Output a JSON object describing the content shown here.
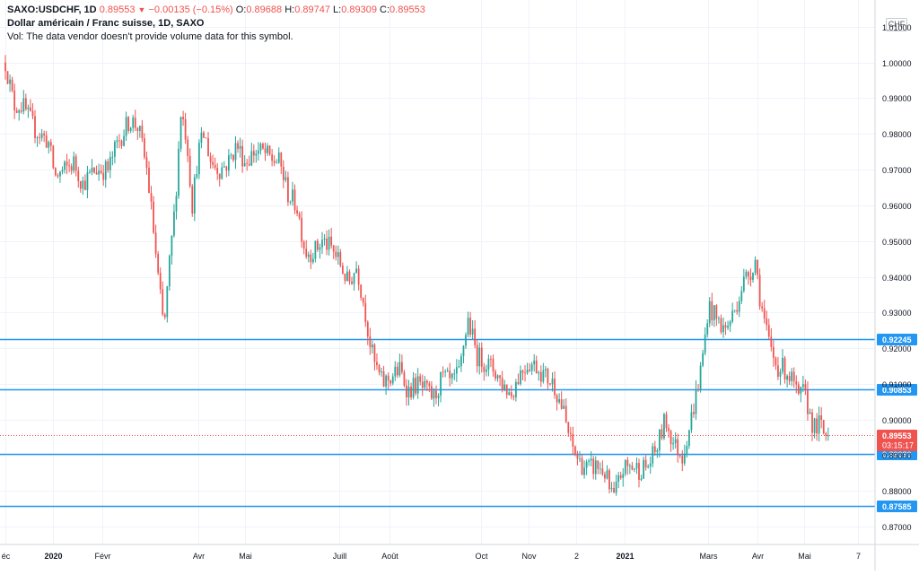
{
  "legend": {
    "symbol": "SAXO:USDCHF, 1D",
    "last": "0.89553",
    "change": "−0.00135 (−0.15%)",
    "o_label": "O:",
    "o_value": "0.89688",
    "h_label": "H:",
    "h_value": "0.89747",
    "l_label": "L:",
    "l_value": "0.89309",
    "c_label": "C:",
    "c_value": "0.89553",
    "title": "Dollar américain / Franc suisse, 1D, SAXO",
    "volume_note": "Vol: The data vendor doesn't provide volume data for this symbol."
  },
  "currency_button": "CHF",
  "price_badge": {
    "price": "0.89553",
    "countdown": "03:15:17"
  },
  "colors": {
    "up": "#26a69a",
    "down": "#ef5350",
    "level": "#2196f3",
    "grid": "#f0f3fa",
    "axis_text": "#131722"
  },
  "chart_data": {
    "type": "candlestick",
    "title": "Dollar américain / Franc suisse, 1D, SAXO",
    "ylim": [
      0.865,
      1.015
    ],
    "y_ticks": [
      "1.01000",
      "1.00000",
      "0.99000",
      "0.98000",
      "0.97000",
      "0.96000",
      "0.95000",
      "0.94000",
      "0.93000",
      "0.92000",
      "0.91000",
      "0.90000",
      "0.89000",
      "0.88000",
      "0.87000"
    ],
    "x_ticks": [
      {
        "label": "éc",
        "pos": 0.0
      },
      {
        "label": "2020",
        "pos": 0.056
      },
      {
        "label": "Févr",
        "pos": 0.113
      },
      {
        "label": "Avr",
        "pos": 0.225
      },
      {
        "label": "Mai",
        "pos": 0.28
      },
      {
        "label": "Juill",
        "pos": 0.39
      },
      {
        "label": "Août",
        "pos": 0.448
      },
      {
        "label": "Oct",
        "pos": 0.555
      },
      {
        "label": "Nov",
        "pos": 0.61
      },
      {
        "label": "2",
        "pos": 0.666
      },
      {
        "label": "2021",
        "pos": 0.723
      },
      {
        "label": "Mars",
        "pos": 0.82
      },
      {
        "label": "Avr",
        "pos": 0.877
      },
      {
        "label": "Mai",
        "pos": 0.932
      },
      {
        "label": "7",
        "pos": 0.995
      }
    ],
    "horizontal_levels": [
      {
        "value": 0.92245,
        "label": "0.92245"
      },
      {
        "value": 0.90853,
        "label": "0.90853"
      },
      {
        "value": 0.8903,
        "label": "0.89030"
      },
      {
        "value": 0.87585,
        "label": "0.87585"
      }
    ],
    "last_price": 0.89553,
    "path": [
      [
        0,
        1.0
      ],
      [
        0.01,
        0.988
      ],
      [
        0.02,
        0.988
      ],
      [
        0.035,
        0.981
      ],
      [
        0.05,
        0.978
      ],
      [
        0.058,
        0.968
      ],
      [
        0.07,
        0.97
      ],
      [
        0.08,
        0.972
      ],
      [
        0.09,
        0.966
      ],
      [
        0.105,
        0.97
      ],
      [
        0.12,
        0.97
      ],
      [
        0.13,
        0.977
      ],
      [
        0.145,
        0.984
      ],
      [
        0.155,
        0.982
      ],
      [
        0.165,
        0.97
      ],
      [
        0.172,
        0.955
      ],
      [
        0.178,
        0.94
      ],
      [
        0.185,
        0.925
      ],
      [
        0.192,
        0.945
      ],
      [
        0.198,
        0.96
      ],
      [
        0.205,
        0.987
      ],
      [
        0.212,
        0.978
      ],
      [
        0.218,
        0.96
      ],
      [
        0.225,
        0.975
      ],
      [
        0.232,
        0.98
      ],
      [
        0.24,
        0.972
      ],
      [
        0.25,
        0.97
      ],
      [
        0.26,
        0.972
      ],
      [
        0.27,
        0.977
      ],
      [
        0.28,
        0.972
      ],
      [
        0.29,
        0.975
      ],
      [
        0.3,
        0.975
      ],
      [
        0.31,
        0.973
      ],
      [
        0.32,
        0.972
      ],
      [
        0.33,
        0.963
      ],
      [
        0.34,
        0.96
      ],
      [
        0.35,
        0.947
      ],
      [
        0.36,
        0.947
      ],
      [
        0.37,
        0.95
      ],
      [
        0.38,
        0.948
      ],
      [
        0.39,
        0.944
      ],
      [
        0.4,
        0.938
      ],
      [
        0.41,
        0.943
      ],
      [
        0.42,
        0.93
      ],
      [
        0.425,
        0.922
      ],
      [
        0.43,
        0.916
      ],
      [
        0.44,
        0.91
      ],
      [
        0.45,
        0.912
      ],
      [
        0.46,
        0.914
      ],
      [
        0.47,
        0.908
      ],
      [
        0.48,
        0.91
      ],
      [
        0.49,
        0.908
      ],
      [
        0.5,
        0.906
      ],
      [
        0.51,
        0.912
      ],
      [
        0.52,
        0.91
      ],
      [
        0.53,
        0.913
      ],
      [
        0.535,
        0.922
      ],
      [
        0.54,
        0.928
      ],
      [
        0.55,
        0.918
      ],
      [
        0.56,
        0.916
      ],
      [
        0.57,
        0.914
      ],
      [
        0.58,
        0.91
      ],
      [
        0.59,
        0.907
      ],
      [
        0.6,
        0.913
      ],
      [
        0.61,
        0.916
      ],
      [
        0.62,
        0.915
      ],
      [
        0.63,
        0.912
      ],
      [
        0.64,
        0.91
      ],
      [
        0.65,
        0.903
      ],
      [
        0.66,
        0.893
      ],
      [
        0.67,
        0.888
      ],
      [
        0.68,
        0.886
      ],
      [
        0.69,
        0.887
      ],
      [
        0.7,
        0.885
      ],
      [
        0.705,
        0.88
      ],
      [
        0.71,
        0.878
      ],
      [
        0.72,
        0.886
      ],
      [
        0.73,
        0.887
      ],
      [
        0.74,
        0.886
      ],
      [
        0.75,
        0.887
      ],
      [
        0.76,
        0.892
      ],
      [
        0.77,
        0.9
      ],
      [
        0.78,
        0.893
      ],
      [
        0.79,
        0.89
      ],
      [
        0.8,
        0.9
      ],
      [
        0.81,
        0.912
      ],
      [
        0.815,
        0.92
      ],
      [
        0.82,
        0.932
      ],
      [
        0.83,
        0.928
      ],
      [
        0.84,
        0.925
      ],
      [
        0.85,
        0.93
      ],
      [
        0.86,
        0.938
      ],
      [
        0.87,
        0.942
      ],
      [
        0.875,
        0.945
      ],
      [
        0.88,
        0.935
      ],
      [
        0.885,
        0.928
      ],
      [
        0.89,
        0.922
      ],
      [
        0.895,
        0.918
      ],
      [
        0.9,
        0.915
      ],
      [
        0.91,
        0.914
      ],
      [
        0.915,
        0.912
      ],
      [
        0.92,
        0.91
      ],
      [
        0.925,
        0.905
      ],
      [
        0.93,
        0.908
      ],
      [
        0.935,
        0.905
      ],
      [
        0.94,
        0.9
      ],
      [
        0.945,
        0.897
      ],
      [
        0.95,
        0.899
      ],
      [
        0.955,
        0.896
      ],
      [
        0.96,
        0.8955
      ]
    ]
  }
}
